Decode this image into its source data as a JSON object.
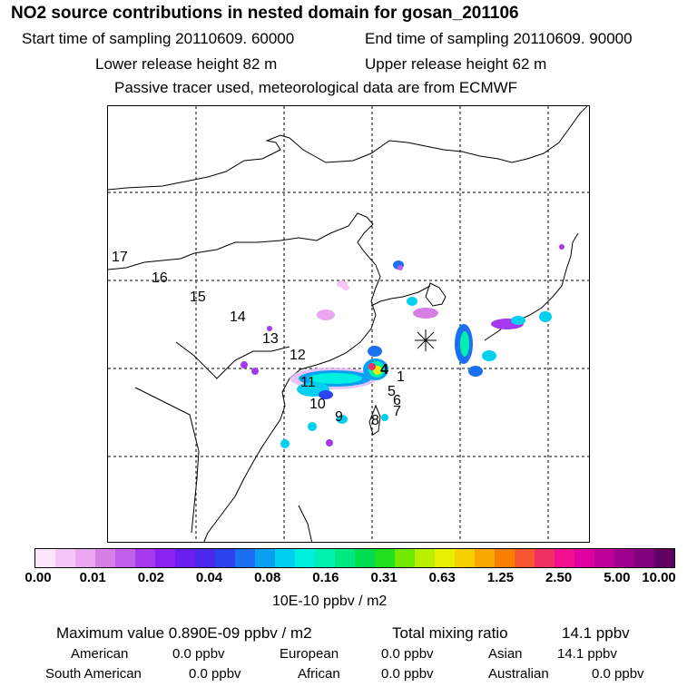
{
  "title": "NO2 source contributions in nested domain for gosan_201106",
  "header": {
    "start_label": "Start time of sampling 20110609. 60000",
    "end_label": "End time of sampling 20110609. 90000",
    "lower_release": "Lower release height   82 m",
    "upper_release": "Upper release height   62 m",
    "tracer_note": "Passive tracer used, meteorological data are from ECMWF"
  },
  "trajectory_labels": [
    "1",
    "4",
    "5",
    "6",
    "7",
    "8",
    "9",
    "10",
    "11",
    "12",
    "13",
    "14",
    "15",
    "16",
    "17"
  ],
  "colorbar": {
    "colors": [
      "#ffe6ff",
      "#f5c6f5",
      "#eaa6f0",
      "#d680e6",
      "#c060e8",
      "#a638ee",
      "#8a22f0",
      "#6a1ef2",
      "#4a28f0",
      "#2c44f0",
      "#1a70f0",
      "#0aa0f0",
      "#00d0f0",
      "#00f0e0",
      "#00f0b0",
      "#00e880",
      "#00dc50",
      "#20e020",
      "#70e800",
      "#b8f000",
      "#e8f000",
      "#f8d000",
      "#f8a800",
      "#f88000",
      "#f85830",
      "#f03060",
      "#f01090",
      "#e000a0",
      "#c0009a",
      "#a00090",
      "#800080",
      "#600060"
    ],
    "labels": [
      "0.00",
      "0.01",
      "0.02",
      "0.04",
      "0.08",
      "0.16",
      "0.31",
      "0.63",
      "1.25",
      "2.50",
      "5.00",
      "10.00"
    ],
    "units": "10E-10 ppbv / m2"
  },
  "stats": {
    "max_label": "Maximum value  0.890E-09 ppbv / m2",
    "total_label": "Total mixing ratio",
    "total_value": "14.1 ppbv",
    "regions": [
      {
        "name": "American",
        "value": "0.0 ppbv"
      },
      {
        "name": "European",
        "value": "0.0 ppbv"
      },
      {
        "name": "Asian",
        "value": "14.1 ppbv"
      },
      {
        "name": "South American",
        "value": "0.0 ppbv"
      },
      {
        "name": "African",
        "value": "0.0 ppbv"
      },
      {
        "name": "Australian",
        "value": "0.0 ppbv"
      }
    ]
  }
}
